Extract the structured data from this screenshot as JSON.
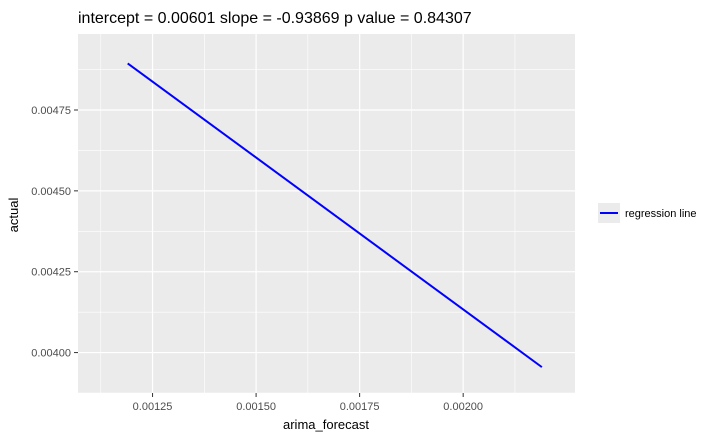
{
  "chart_data": {
    "type": "line",
    "title": "intercept = 0.00601 slope = -0.93869 p value = 0.84307",
    "xlabel": "arima_forecast",
    "ylabel": "actual",
    "xlim": [
      0.00107,
      0.00227
    ],
    "ylim": [
      0.003875,
      0.004985
    ],
    "x_ticks": [
      0.00125,
      0.0015,
      0.00175,
      0.002
    ],
    "x_tick_labels": [
      "0.00125",
      "0.00150",
      "0.00175",
      "0.00200"
    ],
    "y_ticks": [
      0.004,
      0.00425,
      0.0045,
      0.00475
    ],
    "y_tick_labels": [
      "0.00400",
      "0.00425",
      "0.00450",
      "0.00475"
    ],
    "grid": true,
    "legend_position": "right",
    "series": [
      {
        "name": "regression line",
        "color": "#0000ff",
        "x": [
          0.00119,
          0.00219
        ],
        "y": [
          0.004894,
          0.003955
        ]
      }
    ]
  },
  "colors": {
    "panel_background": "#ebebeb",
    "grid": "#ffffff",
    "line": "#0000ff"
  }
}
